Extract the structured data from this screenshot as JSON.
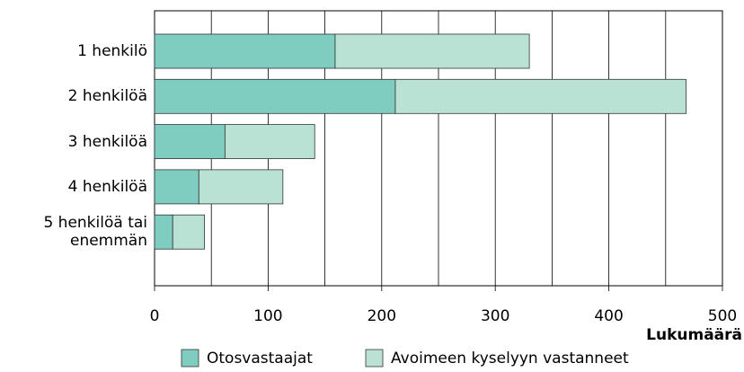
{
  "chart_data": {
    "type": "stacked_bar_horizontal",
    "categories": [
      "1 henkilö",
      "2 henkilöä",
      "3 henkilöä",
      "4 henkilöä",
      "5 henkilöä tai enemmän"
    ],
    "series": [
      {
        "name": "Otosvastaajat",
        "color": "#7ecdc0",
        "values": [
          159,
          212,
          62,
          39,
          16
        ]
      },
      {
        "name": "Avoimeen kyselyyn vastanneet",
        "color": "#b9e2d4",
        "values": [
          171,
          256,
          79,
          74,
          28
        ]
      }
    ],
    "xlabel": "Lukumäärä",
    "xlim": [
      0,
      500
    ],
    "xticks": [
      0,
      100,
      200,
      300,
      400,
      500
    ],
    "xminor": [
      50,
      150,
      250,
      350,
      450
    ],
    "grid": true,
    "legend": "bottom"
  }
}
